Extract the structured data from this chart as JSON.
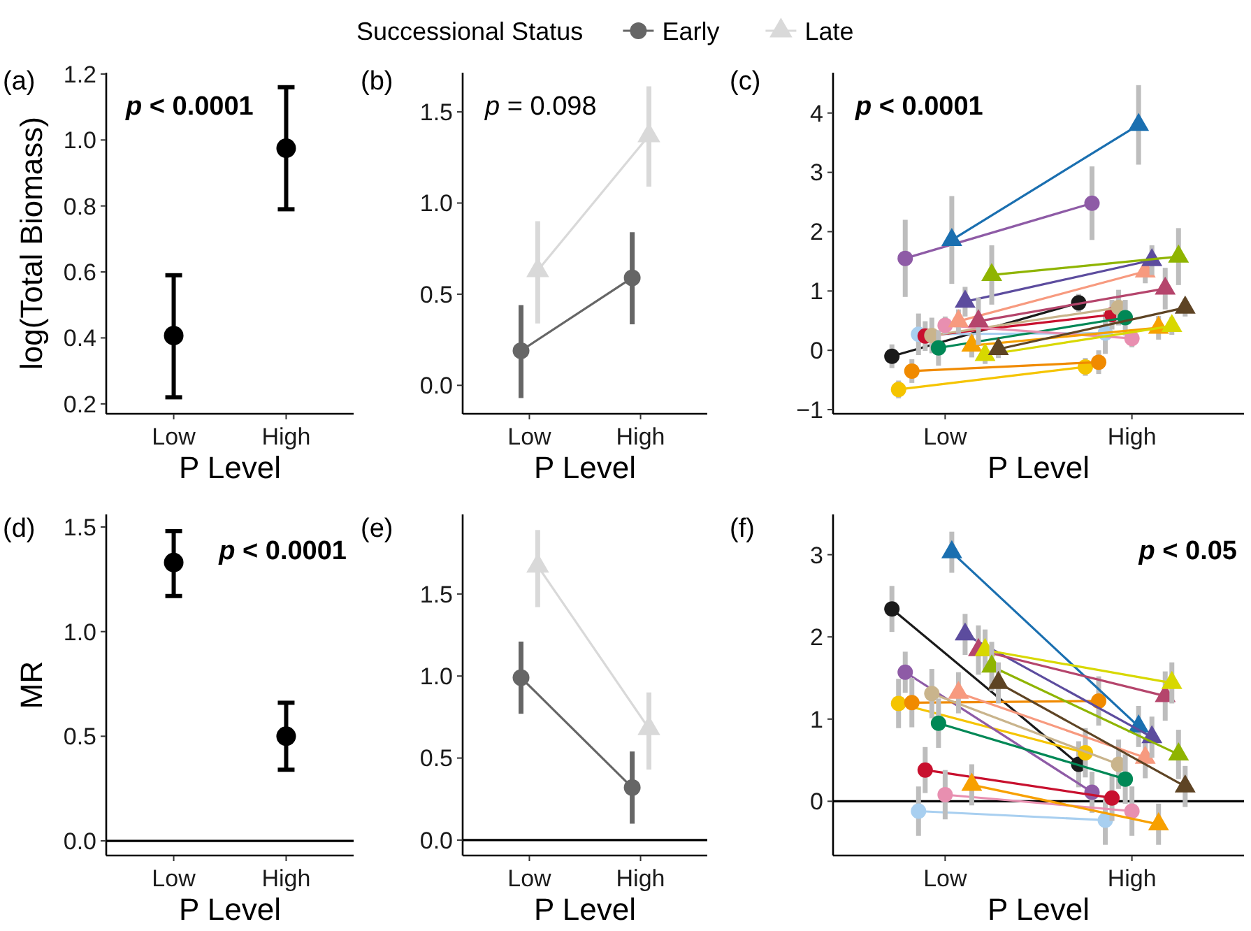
{
  "chart_data": [
    {
      "type": "scatter",
      "ylabel": "log(Total Biomass)",
      "xlabel": "P Level",
      "annotations": [
        "(a)",
        "p < 0.0001"
      ],
      "categories": [
        "Low",
        "High"
      ],
      "ylim": [
        0.17,
        1.204
      ],
      "yticks": [
        0.2,
        0.4,
        0.6,
        0.8,
        {
          "value": 1,
          "label": "1.0"
        },
        1.2
      ],
      "marker": "circle",
      "series": [
        {
          "color": "#000000",
          "values": [
            0.407,
            0.975
          ],
          "errors": [
            [
              0.22,
              0.59
            ],
            [
              0.79,
              1.16
            ]
          ]
        }
      ]
    },
    {
      "type": "line",
      "xlabel": "P Level",
      "legend_title": "Successional Status",
      "legend": "top",
      "annotations": [
        "(b)",
        "p = 0.098"
      ],
      "categories": [
        "Low",
        "High"
      ],
      "ylim": [
        -0.156,
        1.715
      ],
      "yticks": [
        {
          "value": 0,
          "label": "0.0"
        },
        0.5,
        {
          "value": 1,
          "label": "1.0"
        },
        1.5
      ],
      "series": [
        {
          "name": "Early",
          "color": "#666666",
          "marker": "circle",
          "values": [
            0.19,
            0.59
          ],
          "errors": [
            [
              -0.07,
              0.44
            ],
            [
              0.335,
              0.84
            ]
          ]
        },
        {
          "name": "Late",
          "color": "#d9d9d9",
          "marker": "triangle",
          "values": [
            0.63,
            1.37
          ],
          "errors": [
            [
              0.34,
              0.9
            ],
            [
              1.09,
              1.64
            ]
          ]
        }
      ]
    },
    {
      "type": "line",
      "xlabel": "P Level",
      "annotations": [
        "(c)",
        "p < 0.0001"
      ],
      "categories": [
        "Low",
        "High"
      ],
      "ylim": [
        -1.07,
        4.68
      ],
      "yticks": [
        {
          "value": -1,
          "label": "−1"
        },
        0,
        1,
        2,
        3,
        4
      ],
      "series": [
        {
          "color": "#1a1a1a",
          "marker": "circle",
          "values": [
            -0.1,
            0.8
          ],
          "errors": [
            0.2,
            0.15
          ]
        },
        {
          "color": "#f5c400",
          "marker": "circle",
          "values": [
            -0.66,
            -0.28
          ],
          "errors": [
            0.15,
            0.15
          ]
        },
        {
          "color": "#8e5ba6",
          "marker": "circle",
          "values": [
            1.55,
            2.48
          ],
          "errors": [
            0.65,
            0.62
          ]
        },
        {
          "color": "#f08a00",
          "marker": "circle",
          "values": [
            -0.35,
            -0.2
          ],
          "errors": [
            0.2,
            0.2
          ]
        },
        {
          "color": "#a8cff0",
          "marker": "circle",
          "values": [
            0.27,
            0.29
          ],
          "errors": [
            0.35,
            0.35
          ]
        },
        {
          "color": "#c8102e",
          "marker": "circle",
          "values": [
            0.24,
            0.6
          ],
          "errors": [
            0.25,
            0.25
          ]
        },
        {
          "color": "#c9b48c",
          "marker": "circle",
          "values": [
            0.25,
            0.72
          ],
          "errors": [
            0.3,
            0.3
          ]
        },
        {
          "color": "#008856",
          "marker": "circle",
          "values": [
            0.04,
            0.55
          ],
          "errors": [
            0.3,
            0.3
          ]
        },
        {
          "color": "#e88fb0",
          "marker": "circle",
          "values": [
            0.42,
            0.2
          ],
          "errors": [
            0.15,
            0.15
          ]
        },
        {
          "color": "#1a6fb0",
          "marker": "triangle",
          "values": [
            1.86,
            3.8
          ],
          "errors": [
            0.74,
            0.67
          ]
        },
        {
          "color": "#f79a7f",
          "marker": "triangle",
          "values": [
            0.49,
            1.33
          ],
          "errors": [
            0.2,
            0.2
          ]
        },
        {
          "color": "#5c4c9e",
          "marker": "triangle",
          "values": [
            0.82,
            1.52
          ],
          "errors": [
            0.25,
            0.25
          ]
        },
        {
          "color": "#f7a000",
          "marker": "triangle",
          "values": [
            0.08,
            0.38
          ],
          "errors": [
            0.2,
            0.2
          ]
        },
        {
          "color": "#b5456c",
          "marker": "triangle",
          "values": [
            0.49,
            1.04
          ],
          "errors": [
            0.4,
            0.35
          ]
        },
        {
          "color": "#d8d800",
          "marker": "triangle",
          "values": [
            -0.08,
            0.41
          ],
          "errors": [
            0.15,
            0.15
          ]
        },
        {
          "color": "#8fb400",
          "marker": "triangle",
          "values": [
            1.27,
            1.58
          ],
          "errors": [
            0.5,
            0.48
          ]
        },
        {
          "color": "#5e4424",
          "marker": "triangle",
          "values": [
            0.02,
            0.72
          ],
          "errors": [
            0.15,
            0.15
          ]
        }
      ]
    },
    {
      "type": "scatter",
      "ylabel": "MR",
      "xlabel": "P Level",
      "annotations": [
        "(d)",
        "p < 0.0001"
      ],
      "categories": [
        "Low",
        "High"
      ],
      "ylim": [
        -0.07,
        1.56
      ],
      "yticks": [
        {
          "value": 0,
          "label": "0.0"
        },
        0.5,
        {
          "value": 1,
          "label": "1.0"
        },
        1.5
      ],
      "marker": "circle",
      "ref_lines": [
        {
          "axis": "y",
          "value": 0
        }
      ],
      "series": [
        {
          "color": "#000000",
          "values": [
            1.33,
            0.5
          ],
          "errors": [
            [
              1.17,
              1.48
            ],
            [
              0.34,
              0.66
            ]
          ]
        }
      ]
    },
    {
      "type": "line",
      "xlabel": "P Level",
      "annotations": [
        "(e)"
      ],
      "categories": [
        "Low",
        "High"
      ],
      "ylim": [
        -0.094,
        1.985
      ],
      "yticks": [
        {
          "value": 0,
          "label": "0.0"
        },
        0.5,
        {
          "value": 1,
          "label": "1.0"
        },
        1.5
      ],
      "ref_lines": [
        {
          "axis": "y",
          "value": 0
        }
      ],
      "series": [
        {
          "color": "#666666",
          "marker": "circle",
          "values": [
            0.99,
            0.32
          ],
          "errors": [
            [
              0.77,
              1.21
            ],
            [
              0.1,
              0.54
            ]
          ]
        },
        {
          "color": "#d9d9d9",
          "marker": "triangle",
          "values": [
            1.67,
            0.68
          ],
          "errors": [
            [
              1.42,
              1.89
            ],
            [
              0.43,
              0.9
            ]
          ]
        }
      ]
    },
    {
      "type": "line",
      "xlabel": "P Level",
      "annotations": [
        "(f)",
        "p < 0.05"
      ],
      "categories": [
        "Low",
        "High"
      ],
      "ylim": [
        -0.66,
        3.49
      ],
      "yticks": [
        0,
        1,
        2,
        3
      ],
      "ref_lines": [
        {
          "axis": "y",
          "value": 0
        }
      ],
      "series": [
        {
          "color": "#1a1a1a",
          "marker": "circle",
          "values": [
            2.34,
            0.45
          ],
          "errors": [
            0.28,
            0.28
          ]
        },
        {
          "color": "#f5c400",
          "marker": "circle",
          "values": [
            1.19,
            0.59
          ],
          "errors": [
            0.3,
            0.3
          ]
        },
        {
          "color": "#8e5ba6",
          "marker": "circle",
          "values": [
            1.57,
            0.11
          ],
          "errors": [
            0.25,
            0.25
          ]
        },
        {
          "color": "#f08a00",
          "marker": "circle",
          "values": [
            1.2,
            1.22
          ],
          "errors": [
            0.3,
            0.3
          ]
        },
        {
          "color": "#a8cff0",
          "marker": "circle",
          "values": [
            -0.12,
            -0.23
          ],
          "errors": [
            0.3,
            0.3
          ]
        },
        {
          "color": "#c8102e",
          "marker": "circle",
          "values": [
            0.38,
            0.04
          ],
          "errors": [
            0.28,
            0.28
          ]
        },
        {
          "color": "#c9b48c",
          "marker": "circle",
          "values": [
            1.31,
            0.45
          ],
          "errors": [
            0.3,
            0.3
          ]
        },
        {
          "color": "#008856",
          "marker": "circle",
          "values": [
            0.95,
            0.27
          ],
          "errors": [
            0.3,
            0.3
          ]
        },
        {
          "color": "#e88fb0",
          "marker": "circle",
          "values": [
            0.08,
            -0.12
          ],
          "errors": [
            0.3,
            0.3
          ]
        },
        {
          "color": "#1a6fb0",
          "marker": "triangle",
          "values": [
            3.03,
            0.91
          ],
          "errors": [
            0.25,
            0.25
          ]
        },
        {
          "color": "#f79a7f",
          "marker": "triangle",
          "values": [
            1.32,
            0.53
          ],
          "errors": [
            0.25,
            0.25
          ]
        },
        {
          "color": "#5c4c9e",
          "marker": "triangle",
          "values": [
            2.03,
            0.78
          ],
          "errors": [
            0.25,
            0.25
          ]
        },
        {
          "color": "#f7a000",
          "marker": "triangle",
          "values": [
            0.2,
            -0.28
          ],
          "errors": [
            0.25,
            0.25
          ]
        },
        {
          "color": "#b5456c",
          "marker": "triangle",
          "values": [
            1.84,
            1.28
          ],
          "errors": [
            0.3,
            0.3
          ]
        },
        {
          "color": "#d8d800",
          "marker": "triangle",
          "values": [
            1.84,
            1.44
          ],
          "errors": [
            0.25,
            0.25
          ]
        },
        {
          "color": "#8fb400",
          "marker": "triangle",
          "values": [
            1.64,
            0.57
          ],
          "errors": [
            0.3,
            0.3
          ]
        },
        {
          "color": "#5e4424",
          "marker": "triangle",
          "values": [
            1.44,
            0.18
          ],
          "errors": [
            0.25,
            0.25
          ]
        }
      ]
    }
  ]
}
